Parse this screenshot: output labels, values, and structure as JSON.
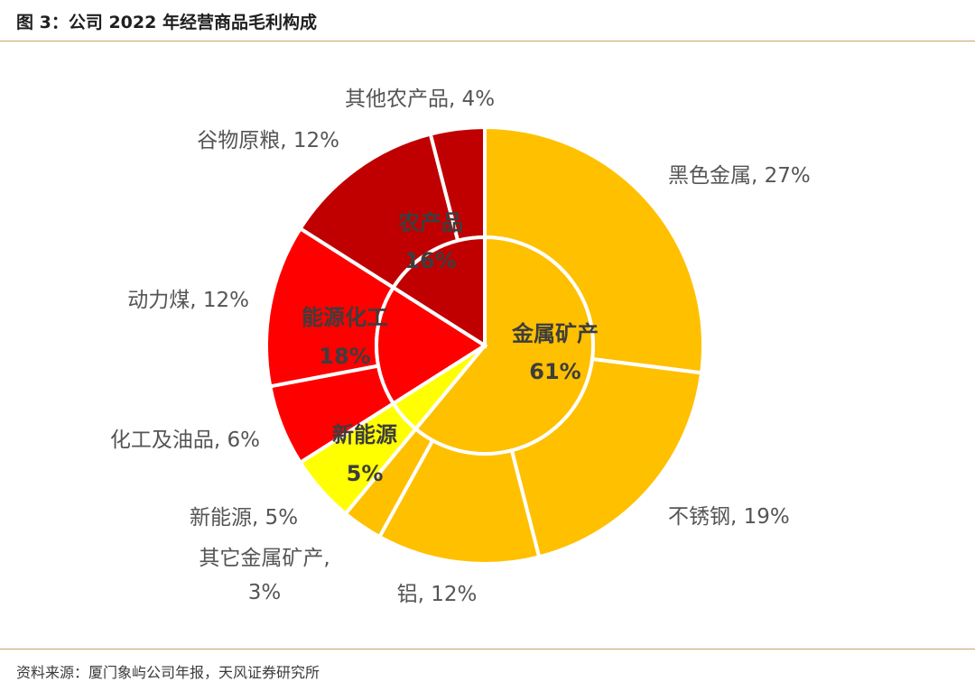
{
  "header": {
    "title": "图 3：公司 2022 年经营商品毛利构成"
  },
  "footer": {
    "source": "资料来源：厦门象屿公司年报，天风证券研究所"
  },
  "chart_data": {
    "type": "pie",
    "subtype": "sunburst-donut",
    "inner_ring": [
      {
        "name": "金属矿产",
        "value": 61,
        "label": "61%",
        "color": "#FFC000"
      },
      {
        "name": "新能源",
        "value": 5,
        "label": "5%",
        "color": "#FFFF00"
      },
      {
        "name": "能源化工",
        "value": 18,
        "label": "18%",
        "color": "#FF0000"
      },
      {
        "name": "农产品",
        "value": 16,
        "label": "16%",
        "color": "#C00000"
      }
    ],
    "outer_ring": [
      {
        "name": "黑色金属",
        "value": 27,
        "label": "黑色金属, 27%",
        "color": "#FFC000"
      },
      {
        "name": "不锈钢",
        "value": 19,
        "label": "不锈钢, 19%",
        "color": "#FFC000"
      },
      {
        "name": "铝",
        "value": 12,
        "label": "铝, 12%",
        "color": "#FFC000"
      },
      {
        "name": "其它金属矿产",
        "value": 3,
        "label": "其它金属矿产,",
        "label2": "3%",
        "color": "#FFC000"
      },
      {
        "name": "新能源",
        "value": 5,
        "label": "新能源, 5%",
        "color": "#FFFF00"
      },
      {
        "name": "化工及油品",
        "value": 6,
        "label": "化工及油品, 6%",
        "color": "#FF0000"
      },
      {
        "name": "动力煤",
        "value": 12,
        "label": "动力煤, 12%",
        "color": "#FF0000"
      },
      {
        "name": "谷物原粮",
        "value": 12,
        "label": "谷物原粮, 12%",
        "color": "#C00000"
      },
      {
        "name": "其他农产品",
        "value": 4,
        "label": "其他农产品, 4%",
        "color": "#C00000"
      }
    ]
  }
}
